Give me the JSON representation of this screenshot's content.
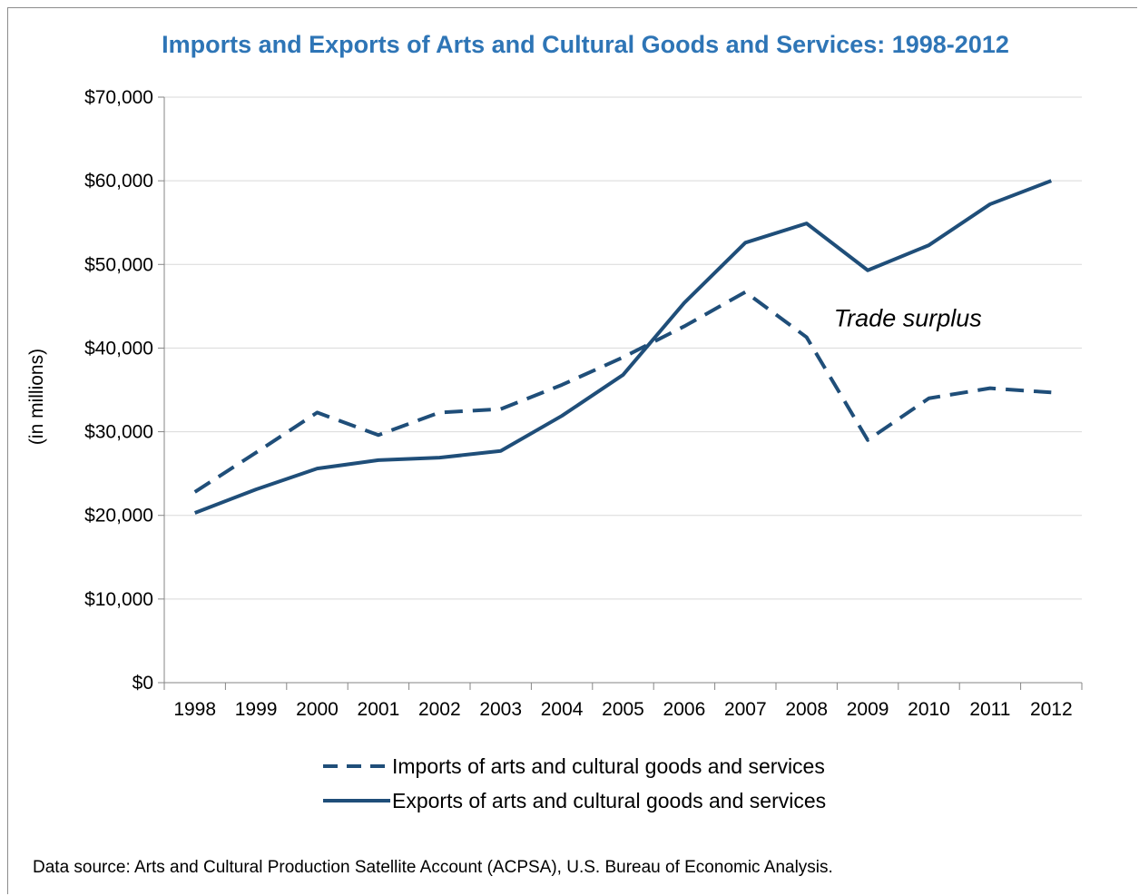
{
  "chart_data": {
    "type": "line",
    "title": "Imports and Exports of Arts and Cultural Goods and Services: 1998-2012",
    "ylabel": "(in millions)",
    "xlabel": "",
    "categories": [
      "1998",
      "1999",
      "2000",
      "2001",
      "2002",
      "2003",
      "2004",
      "2005",
      "2006",
      "2007",
      "2008",
      "2009",
      "2010",
      "2011",
      "2012"
    ],
    "ylim": [
      0,
      70000
    ],
    "yticks": [
      0,
      10000,
      20000,
      30000,
      40000,
      50000,
      60000,
      70000
    ],
    "ytick_labels": [
      "$0",
      "$10,000",
      "$20,000",
      "$30,000",
      "$40,000",
      "$50,000",
      "$60,000",
      "$70,000"
    ],
    "grid": true,
    "legend_position": "bottom",
    "series": [
      {
        "name": "Imports of arts and cultural goods and services",
        "style": "dashed",
        "color": "#1f4e79",
        "values": [
          22800,
          27500,
          32300,
          29600,
          32300,
          32700,
          35600,
          38900,
          42600,
          46700,
          41300,
          29000,
          34000,
          35200,
          34700
        ]
      },
      {
        "name": "Exports of arts and cultural goods and services",
        "style": "solid",
        "color": "#1f4e79",
        "values": [
          20300,
          23100,
          25600,
          26600,
          26900,
          27700,
          31900,
          36800,
          45400,
          52600,
          54900,
          49300,
          52300,
          57200,
          60000
        ]
      }
    ],
    "annotations": [
      {
        "text": "Trade surplus",
        "x": "2008",
        "y": 41500
      }
    ]
  },
  "footer": {
    "source": "Data source: Arts and Cultural Production Satellite Account (ACPSA), U.S. Bureau of Economic Analysis."
  }
}
